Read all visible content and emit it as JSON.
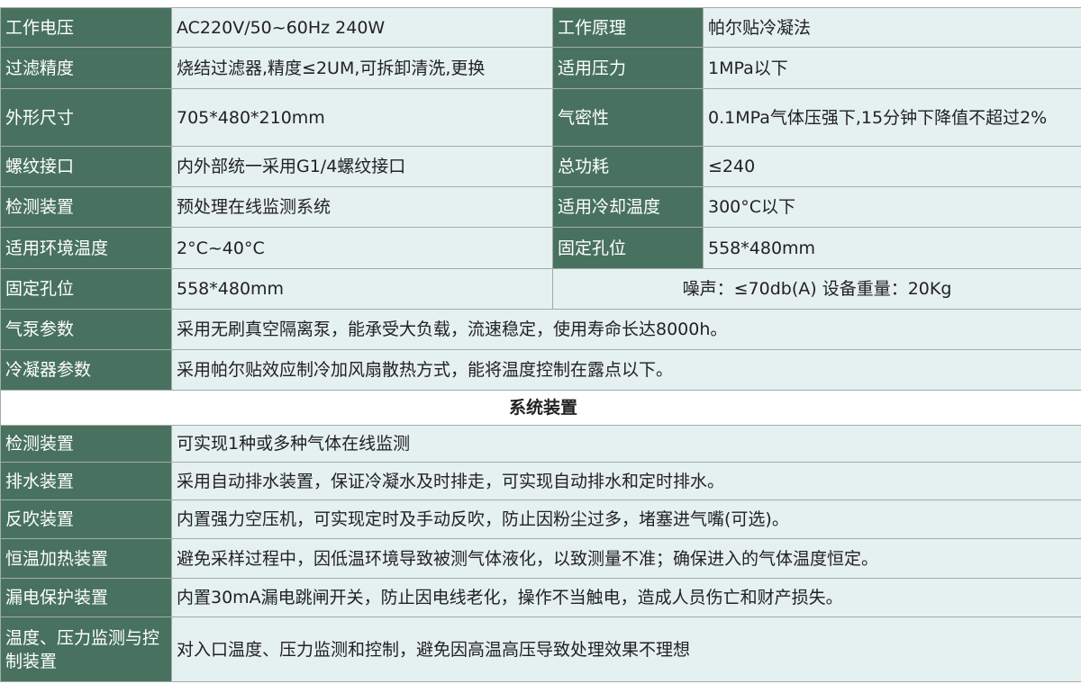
{
  "spec_rows": [
    {
      "k1": "工作电压",
      "v1": "AC220V/50~60Hz 240W",
      "k2": "工作原理",
      "v2": "帕尔贴冷凝法"
    },
    {
      "k1": "过滤精度",
      "v1": "烧结过滤器,精度≤2UM,可拆卸清洗,更换",
      "k2": "适用压力",
      "v2": "1MPa以下"
    },
    {
      "k1": "外形尺寸",
      "v1": "705*480*210mm",
      "k2": "气密性",
      "v2": "0.1MPa气体压强下,15分钟下降值不超过2%"
    },
    {
      "k1": "螺纹接口",
      "v1": "内外部统一采用G1/4螺纹接口",
      "k2": "总功耗",
      "v2": "≤240"
    },
    {
      "k1": "检测装置",
      "v1": "预处理在线监测系统",
      "k2": "适用冷却温度",
      "v2": "300°C以下"
    },
    {
      "k1": "适用环境温度",
      "v1": "2°C~40°C",
      "k2": "固定孔位",
      "v2": "558*480mm"
    }
  ],
  "row7": {
    "k": "固定孔位",
    "v": "558*480mm",
    "merged": "噪声：≤70db(A)  设备重量：20Kg"
  },
  "wide_rows": [
    {
      "k": "气泵参数",
      "v": "采用无刷真空隔离泵，能承受大负载，流速稳定，使用寿命长达8000h。"
    },
    {
      "k": "冷凝器参数",
      "v": "采用帕尔贴效应制冷加风扇散热方式，能将温度控制在露点以下。"
    }
  ],
  "section_title": "系统装置",
  "system_rows": [
    {
      "k": "检测装置",
      "v": "可实现1种或多种气体在线监测"
    },
    {
      "k": "排水装置",
      "v": "采用自动排水装置，保证冷凝水及时排走，可实现自动排水和定时排水。"
    },
    {
      "k": "反吹装置",
      "v": "内置强力空压机，可实现定时及手动反吹，防止因粉尘过多，堵塞进气嘴(可选)。"
    },
    {
      "k": "恒温加热装置",
      "v": "避免采样过程中，因低温环境导致被测气体液化，以致测量不准；确保进入的气体温度恒定。"
    },
    {
      "k": "漏电保护装置",
      "v": "内置30mA漏电跳闸开关，防止因电线老化，操作不当触电，造成人员伤亡和财产损失。"
    },
    {
      "k": "温度、压力监测与控制装置",
      "v": "对入口温度、压力监测和控制，避免因高温高压导致处理效果不理想"
    }
  ],
  "colors": {
    "label_bg": "#48725f",
    "value_bg": "#e5f0f0",
    "border": "#a3abab"
  }
}
